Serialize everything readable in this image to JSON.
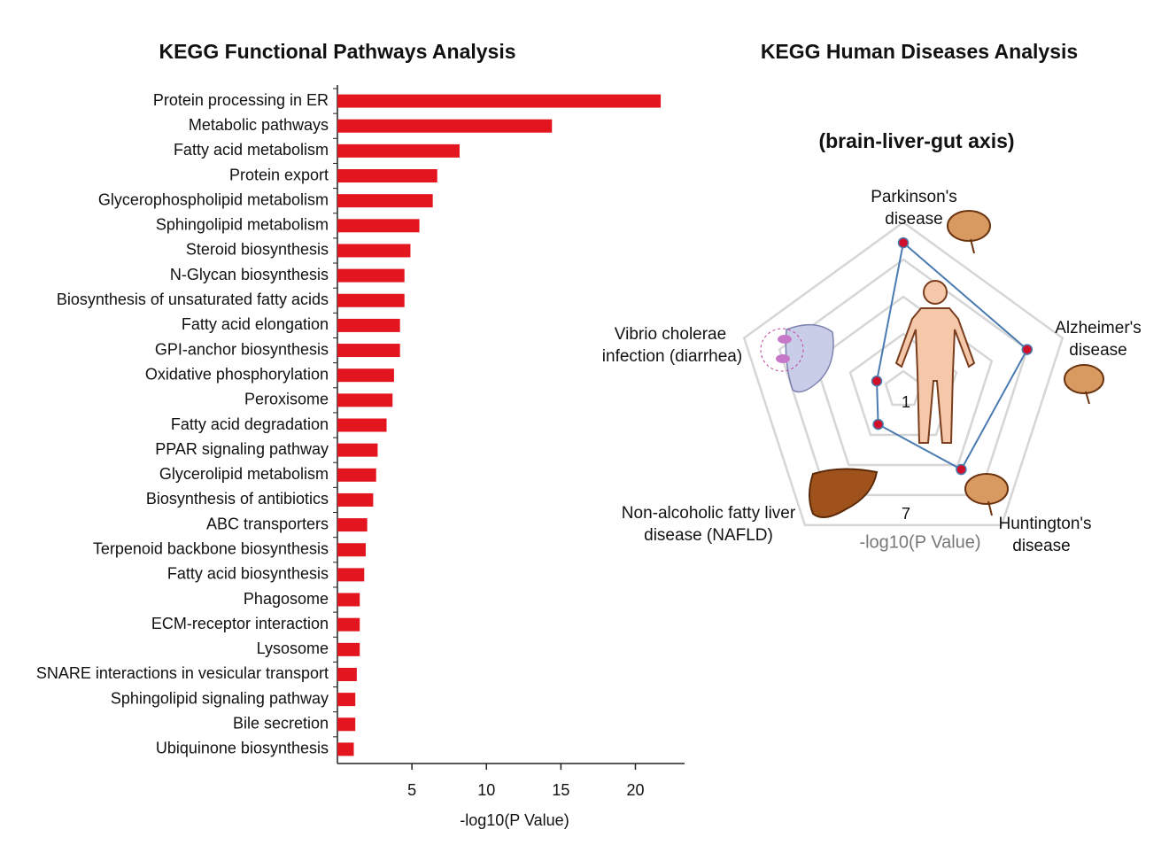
{
  "chart_data": [
    {
      "type": "hbar",
      "title": "KEGG Functional Pathways Analysis",
      "x_label": "-log10(P Value)",
      "categories": [
        "Protein processing in ER",
        "Metabolic pathways",
        "Fatty acid metabolism",
        "Protein export",
        "Glycerophospholipid metabolism",
        "Sphingolipid metabolism",
        "Steroid biosynthesis",
        "N-Glycan biosynthesis",
        "Biosynthesis of unsaturated fatty acids",
        "Fatty acid elongation",
        "GPI-anchor biosynthesis",
        "Oxidative phosphorylation",
        "Peroxisome",
        "Fatty acid degradation",
        "PPAR signaling pathway",
        "Glycerolipid metabolism",
        "Biosynthesis of antibiotics",
        "ABC transporters",
        "Terpenoid backbone biosynthesis",
        "Fatty acid biosynthesis",
        "Phagosome",
        "ECM-receptor interaction",
        "Lysosome",
        "SNARE interactions in vesicular transport",
        "Sphingolipid signaling pathway",
        "Bile secretion",
        "Ubiquinone biosynthesis"
      ],
      "values": [
        21.7,
        14.4,
        8.2,
        6.7,
        6.4,
        5.5,
        4.9,
        4.5,
        4.5,
        4.2,
        4.2,
        3.8,
        3.7,
        3.3,
        2.7,
        2.6,
        2.4,
        2.0,
        1.9,
        1.8,
        1.5,
        1.5,
        1.5,
        1.3,
        1.2,
        1.2,
        1.1
      ],
      "color": "#e3161f",
      "xlim": [
        0,
        23.3
      ],
      "xticks": [
        5,
        10,
        15,
        20
      ]
    },
    {
      "type": "radar",
      "title": "KEGG Human Diseases Analysis",
      "subtitle": "(brain-liver-gut axis)",
      "r_label": "-log10(P Value)",
      "categories": [
        [
          "Parkinson's",
          "disease"
        ],
        [
          "Alzheimer's",
          "disease"
        ],
        [
          "Huntington's",
          "disease"
        ],
        [
          "Non-alcoholic fatty liver",
          "disease (NAFLD)"
        ],
        [
          "Vibrio cholerae",
          "infection (diarrhea)"
        ]
      ],
      "values": [
        7.9,
        7.0,
        5.3,
        2.3,
        1.5
      ],
      "color": "#4a7bb0",
      "marker_color": "#d0102a",
      "rlim": [
        0,
        9
      ],
      "rgrid": [
        1,
        3,
        5,
        7,
        9
      ],
      "rticks": [
        1,
        7
      ]
    }
  ]
}
